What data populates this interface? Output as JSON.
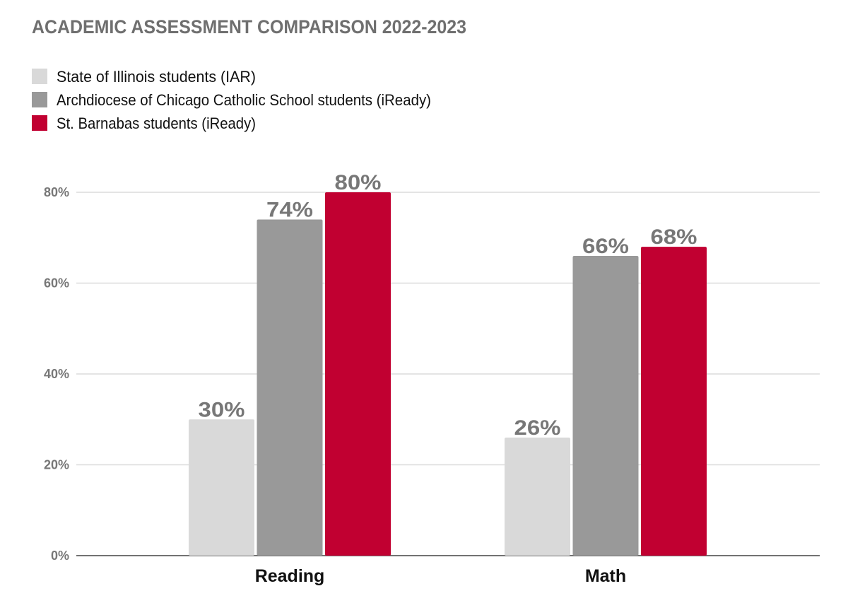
{
  "chart_data": {
    "type": "bar",
    "title": "ACADEMIC ASSESSMENT COMPARISON 2022-2023",
    "categories": [
      "Reading",
      "Math"
    ],
    "series": [
      {
        "name": "State of Illinois students (IAR)",
        "values": [
          30,
          26
        ],
        "color": "#d9d9d9"
      },
      {
        "name": "Archdiocese of Chicago Catholic School students (iReady)",
        "values": [
          74,
          66
        ],
        "color": "#999999"
      },
      {
        "name": "St. Barnabas students (iReady)",
        "values": [
          80,
          68
        ],
        "color": "#c10031"
      }
    ],
    "ylim": [
      0,
      80
    ],
    "yticks": [
      "0%",
      "20%",
      "40%",
      "60%",
      "80%"
    ],
    "ytick_values": [
      0,
      20,
      40,
      60,
      80
    ],
    "value_suffix": "%",
    "grid": true,
    "legend_position": "top-left",
    "xlabel": "",
    "ylabel": ""
  }
}
